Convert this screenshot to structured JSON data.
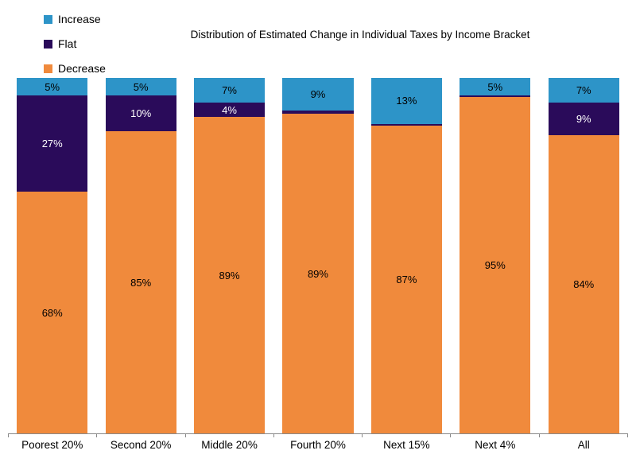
{
  "title": "Distribution of Estimated Change in Individual Taxes by Income Bracket",
  "legend": {
    "position": "top-left",
    "items": [
      {
        "label": "Increase",
        "color": "#2D94C8"
      },
      {
        "label": "Flat",
        "color": "#2A0B5A"
      },
      {
        "label": "Decrease",
        "color": "#F08A3C"
      }
    ]
  },
  "chart_data": {
    "type": "bar",
    "stacked": true,
    "orientation": "vertical",
    "grid": false,
    "ylim": [
      0,
      100
    ],
    "unit": "%",
    "categories": [
      "Poorest 20%",
      "Second 20%",
      "Middle 20%",
      "Fourth 20%",
      "Next 15%",
      "Next 4%",
      "All"
    ],
    "series": [
      {
        "name": "Increase",
        "color": "#2D94C8",
        "label_color": "#000000",
        "values": [
          5,
          5,
          7,
          9,
          13,
          5,
          7
        ],
        "labels": [
          "5%",
          "5%",
          "7%",
          "9%",
          "13%",
          "5%",
          "7%"
        ]
      },
      {
        "name": "Flat",
        "color": "#2A0B5A",
        "label_color": "#ffffff",
        "values": [
          27,
          10,
          4,
          1,
          0.5,
          0.5,
          9
        ],
        "labels": [
          "27%",
          "10%",
          "4%",
          "",
          "",
          "",
          "9%"
        ]
      },
      {
        "name": "Decrease",
        "color": "#F08A3C",
        "label_color": "#000000",
        "values": [
          68,
          85,
          89,
          89,
          87,
          95,
          84
        ],
        "labels": [
          "68%",
          "85%",
          "89%",
          "89%",
          "87%",
          "95%",
          "84%"
        ]
      }
    ],
    "axis_color": "#898989"
  }
}
